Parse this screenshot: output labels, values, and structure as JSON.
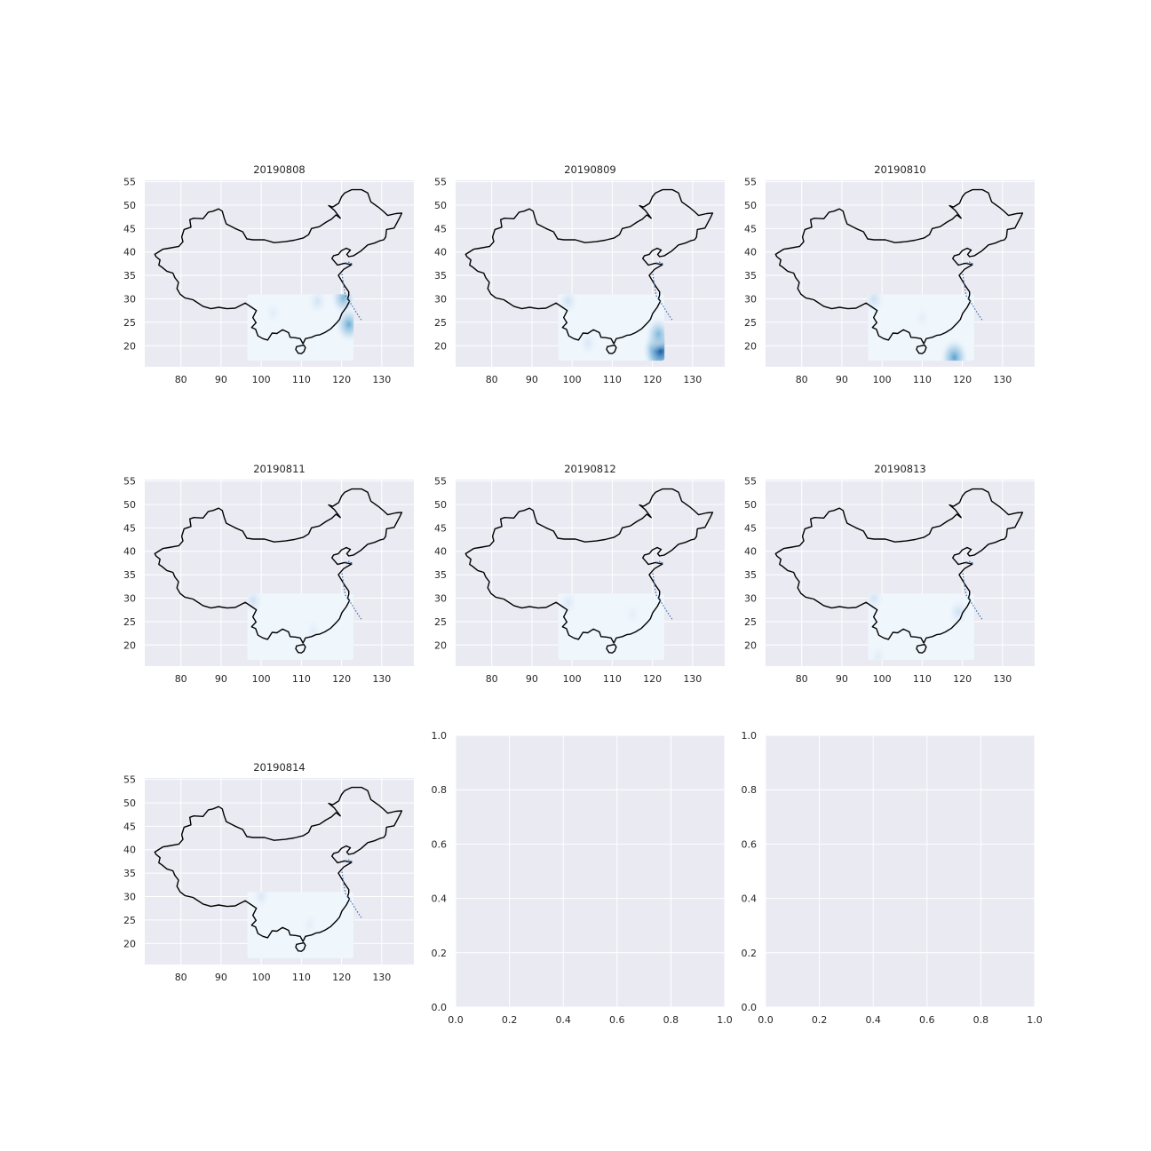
{
  "figure": {
    "background": "#ffffff",
    "axes_face": "#eaeaf2",
    "grid_color": "#ffffff",
    "outline_color": "#000000",
    "cmap": "Blues"
  },
  "chart_data": [
    {
      "type": "heatmap",
      "title": "20190808",
      "xticks": [
        80,
        90,
        100,
        110,
        120,
        130
      ],
      "yticks": [
        20,
        25,
        30,
        35,
        40,
        45,
        50,
        55
      ],
      "xlim": [
        71,
        138
      ],
      "ylim": [
        15.5,
        55.3
      ],
      "grid": true,
      "field_extent": {
        "lon": [
          96.5,
          123
        ],
        "lat": [
          16.8,
          31
        ]
      },
      "hotspots": [
        [
          120.5,
          30.2,
          0.45
        ],
        [
          121.8,
          24.5,
          0.5
        ],
        [
          114,
          29.5,
          0.18
        ],
        [
          103,
          27,
          0.12
        ]
      ]
    },
    {
      "type": "heatmap",
      "title": "20190809",
      "xticks": [
        80,
        90,
        100,
        110,
        120,
        130
      ],
      "yticks": [
        20,
        25,
        30,
        35,
        40,
        45,
        50,
        55
      ],
      "xlim": [
        71,
        138
      ],
      "ylim": [
        15.5,
        55.3
      ],
      "grid": true,
      "field_extent": {
        "lon": [
          96.5,
          123
        ],
        "lat": [
          16.8,
          31
        ]
      },
      "hotspots": [
        [
          122,
          19,
          0.85
        ],
        [
          121.5,
          22.5,
          0.45
        ],
        [
          99,
          29.5,
          0.2
        ],
        [
          104,
          20.5,
          0.15
        ]
      ]
    },
    {
      "type": "heatmap",
      "title": "20190810",
      "xticks": [
        80,
        90,
        100,
        110,
        120,
        130
      ],
      "yticks": [
        20,
        25,
        30,
        35,
        40,
        45,
        50,
        55
      ],
      "xlim": [
        71,
        138
      ],
      "ylim": [
        15.5,
        55.3
      ],
      "grid": true,
      "field_extent": {
        "lon": [
          96.5,
          123
        ],
        "lat": [
          16.8,
          31
        ]
      },
      "hotspots": [
        [
          118,
          17.5,
          0.55
        ],
        [
          98,
          30,
          0.22
        ],
        [
          110,
          26,
          0.1
        ]
      ]
    },
    {
      "type": "heatmap",
      "title": "20190811",
      "xticks": [
        80,
        90,
        100,
        110,
        120,
        130
      ],
      "yticks": [
        20,
        25,
        30,
        35,
        40,
        45,
        50,
        55
      ],
      "xlim": [
        71,
        138
      ],
      "ylim": [
        15.5,
        55.3
      ],
      "grid": true,
      "field_extent": {
        "lon": [
          96.5,
          123
        ],
        "lat": [
          16.8,
          31
        ]
      },
      "hotspots": [
        [
          98,
          29.5,
          0.2
        ],
        [
          113,
          23,
          0.12
        ]
      ]
    },
    {
      "type": "heatmap",
      "title": "20190812",
      "xticks": [
        80,
        90,
        100,
        110,
        120,
        130
      ],
      "yticks": [
        20,
        25,
        30,
        35,
        40,
        45,
        50,
        55
      ],
      "xlim": [
        71,
        138
      ],
      "ylim": [
        15.5,
        55.3
      ],
      "grid": true,
      "field_extent": {
        "lon": [
          96.5,
          123
        ],
        "lat": [
          16.8,
          31
        ]
      },
      "hotspots": [
        [
          99,
          29,
          0.15
        ],
        [
          115,
          26.5,
          0.1
        ]
      ]
    },
    {
      "type": "heatmap",
      "title": "20190813",
      "xticks": [
        80,
        90,
        100,
        110,
        120,
        130
      ],
      "yticks": [
        20,
        25,
        30,
        35,
        40,
        45,
        50,
        55
      ],
      "xlim": [
        71,
        138
      ],
      "ylim": [
        15.5,
        55.3
      ],
      "grid": true,
      "field_extent": {
        "lon": [
          96.5,
          123
        ],
        "lat": [
          16.8,
          31
        ]
      },
      "hotspots": [
        [
          98,
          30,
          0.18
        ],
        [
          119,
          27,
          0.2
        ],
        [
          99,
          17.5,
          0.12
        ]
      ]
    },
    {
      "type": "heatmap",
      "title": "20190814",
      "xticks": [
        80,
        90,
        100,
        110,
        120,
        130
      ],
      "yticks": [
        20,
        25,
        30,
        35,
        40,
        45,
        50,
        55
      ],
      "xlim": [
        71,
        138
      ],
      "ylim": [
        15.5,
        55.3
      ],
      "grid": true,
      "field_extent": {
        "lon": [
          96.5,
          123
        ],
        "lat": [
          16.8,
          31
        ]
      },
      "hotspots": [
        [
          100,
          30,
          0.15
        ],
        [
          112,
          24,
          0.1
        ]
      ]
    },
    {
      "type": "empty",
      "title": "",
      "xticks": [
        0.0,
        0.2,
        0.4,
        0.6,
        0.8,
        1.0
      ],
      "yticks": [
        0.0,
        0.2,
        0.4,
        0.6,
        0.8,
        1.0
      ],
      "xlim": [
        0,
        1
      ],
      "ylim": [
        0,
        1
      ],
      "grid": true,
      "xtick_labels": [
        "0.0",
        "0.2",
        "0.4",
        "0.6",
        "0.8",
        "1.0"
      ],
      "ytick_labels": [
        "0.0",
        "0.2",
        "0.4",
        "0.6",
        "0.8",
        "1.0"
      ]
    },
    {
      "type": "empty",
      "title": "",
      "xticks": [
        0.0,
        0.2,
        0.4,
        0.6,
        0.8,
        1.0
      ],
      "yticks": [
        0.0,
        0.2,
        0.4,
        0.6,
        0.8,
        1.0
      ],
      "xlim": [
        0,
        1
      ],
      "ylim": [
        0,
        1
      ],
      "grid": true,
      "xtick_labels": [
        "0.0",
        "0.2",
        "0.4",
        "0.6",
        "0.8",
        "1.0"
      ],
      "ytick_labels": [
        "0.0",
        "0.2",
        "0.4",
        "0.6",
        "0.8",
        "1.0"
      ]
    }
  ]
}
